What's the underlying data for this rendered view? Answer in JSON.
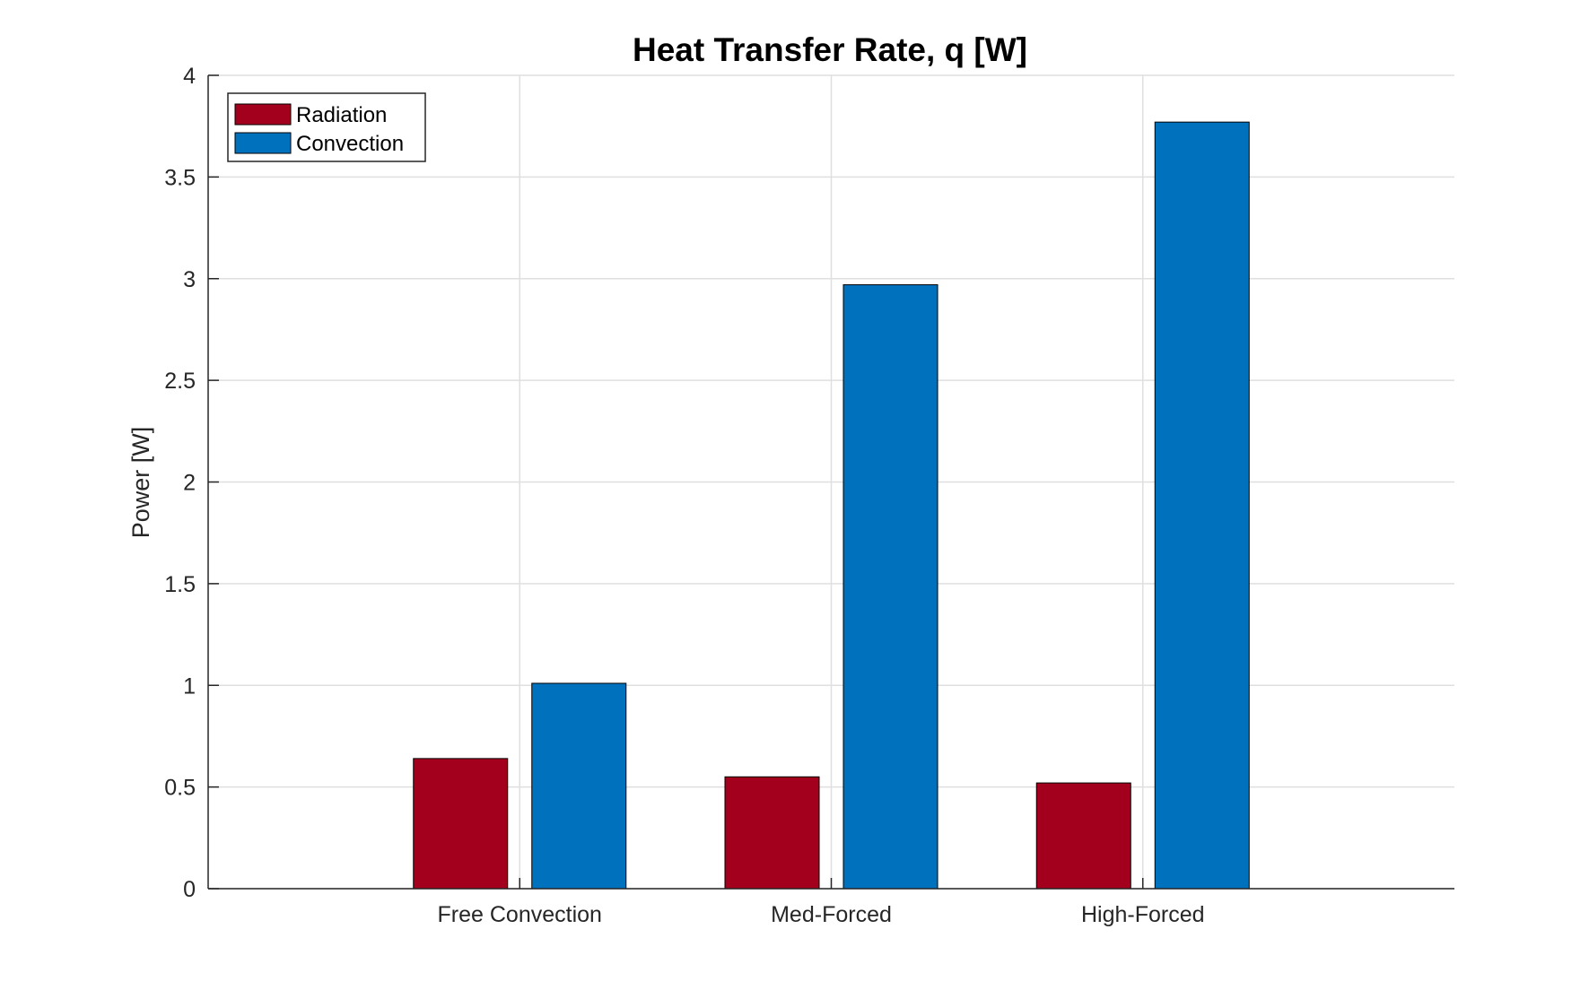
{
  "chart_data": {
    "type": "bar",
    "title": "Heat Transfer Rate, q [W]",
    "xlabel": "",
    "ylabel": "Power [W]",
    "categories": [
      "Free Convection",
      "Med-Forced",
      "High-Forced"
    ],
    "series": [
      {
        "name": "Radiation",
        "color": "#A2001D",
        "values": [
          0.64,
          0.55,
          0.52
        ]
      },
      {
        "name": "Convection",
        "color": "#0071BC",
        "values": [
          1.01,
          2.97,
          3.77
        ]
      }
    ],
    "ylim": [
      0,
      4
    ],
    "yticks": [
      "0",
      "0.5",
      "1",
      "1.5",
      "2",
      "2.5",
      "3",
      "3.5",
      "4"
    ],
    "grid": true,
    "legend_position": "top-left"
  }
}
